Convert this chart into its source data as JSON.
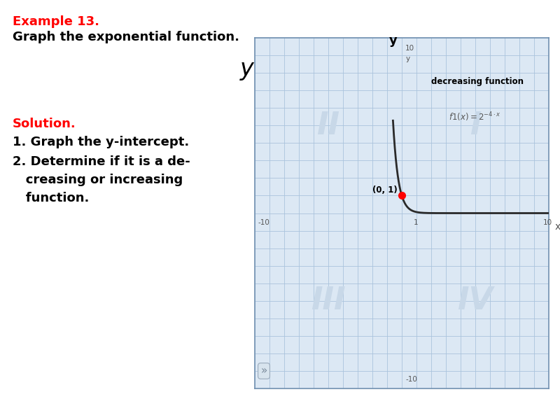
{
  "title_example": "Example 13.",
  "title_sub": "Graph the exponential function.",
  "solution_label": "Solution.",
  "step1": "1. Graph the y-intercept.",
  "step2_line1": "2. Determine if it is a de-",
  "step2_line2": "   creasing or increasing",
  "step2_line3": "   function.",
  "xlim": [
    -10,
    10
  ],
  "ylim": [
    -10,
    10
  ],
  "point_x": 0,
  "point_y": 1,
  "point_label": "(0, 1)",
  "decreasing_label": "decreasing function",
  "bg_color": "#ffffff",
  "grid_color": "#aac4dd",
  "axis_color": "#000000",
  "curve_color": "#2a2a2a",
  "point_color": "#ff0000",
  "quadrant_color": "#c8d8e8",
  "example_color": "#ff0000",
  "text_color": "#000000",
  "graph_bg": "#dce8f4",
  "graph_border": "#7090b0"
}
